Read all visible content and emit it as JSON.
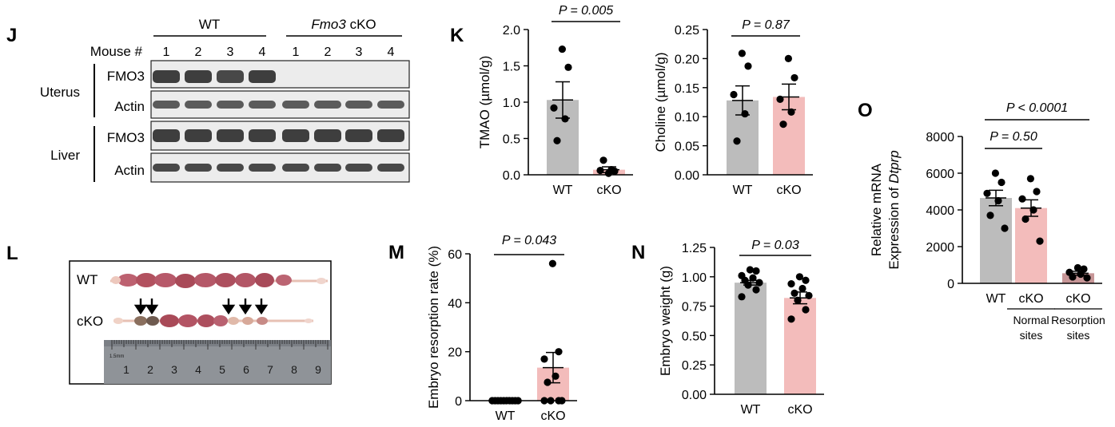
{
  "colors": {
    "wt_bar": "#bcbcbc",
    "cko_bar": "#f3bcbb",
    "cko_resorption_bar": "#c79697",
    "blot_bg": "#ececec",
    "band": "#2b2b2b",
    "ruler": "#8e9196",
    "photo_bg": "#ffffff",
    "tissue": "#b55a69"
  },
  "panel_J": {
    "label": "J",
    "groups": [
      {
        "name": "WT",
        "italic_prefix": ""
      },
      {
        "name": "cKO",
        "italic_prefix": "Fmo3"
      }
    ],
    "mouse_label": "Mouse #",
    "lanes": [
      "1",
      "2",
      "3",
      "4",
      "1",
      "2",
      "3",
      "4"
    ],
    "tissues": [
      {
        "name": "Uterus",
        "rows": [
          {
            "label": "FMO3",
            "bands": [
              0.9,
              0.9,
              0.85,
              0.9,
              0.02,
              0.02,
              0.02,
              0.02
            ]
          },
          {
            "label": "Actin",
            "bands": [
              0.75,
              0.75,
              0.75,
              0.75,
              0.75,
              0.75,
              0.75,
              0.75
            ]
          }
        ]
      },
      {
        "name": "Liver",
        "rows": [
          {
            "label": "FMO3",
            "bands": [
              0.9,
              0.9,
              0.9,
              0.9,
              0.9,
              0.9,
              0.9,
              0.9
            ]
          },
          {
            "label": "Actin",
            "bands": [
              0.85,
              0.85,
              0.85,
              0.85,
              0.85,
              0.85,
              0.85,
              0.85
            ]
          }
        ]
      }
    ]
  },
  "panel_L": {
    "label": "L",
    "row_labels": [
      "WT",
      "cKO"
    ],
    "ruler_numbers": [
      "1",
      "2",
      "3",
      "4",
      "5",
      "6",
      "7",
      "8",
      "9"
    ],
    "ruler_unit": "1.5mm",
    "arrow_count": 5
  },
  "chart_data": [
    {
      "id": "K1",
      "panel_label": "K",
      "type": "bar",
      "title": "",
      "xlabel": "",
      "ylabel": "TMAO (µmol/g)",
      "categories": [
        "WT",
        "cKO"
      ],
      "category_sublabels": [
        "",
        ""
      ],
      "ylim": [
        0,
        2.0
      ],
      "yticks": [
        "0.0",
        "0.5",
        "1.0",
        "1.5",
        "2.0"
      ],
      "means": [
        1.03,
        0.07
      ],
      "sem": [
        0.25,
        0.04
      ],
      "points": [
        [
          1.73,
          1.48,
          0.92,
          0.77,
          0.47
        ],
        [
          0.02,
          0.05,
          0.06,
          0.07,
          0.2
        ]
      ],
      "comparisons": [
        {
          "from": 0,
          "to": 1,
          "text": "P = 0.005"
        }
      ]
    },
    {
      "id": "K2",
      "panel_label": "",
      "type": "bar",
      "title": "",
      "xlabel": "",
      "ylabel": "Choline (µmol/g)",
      "categories": [
        "WT",
        "cKO"
      ],
      "category_sublabels": [
        "",
        ""
      ],
      "ylim": [
        0,
        0.25
      ],
      "yticks": [
        "0.00",
        "0.05",
        "0.10",
        "0.15",
        "0.20",
        "0.25"
      ],
      "means": [
        0.128,
        0.134
      ],
      "sem": [
        0.025,
        0.022
      ],
      "points": [
        [
          0.209,
          0.187,
          0.138,
          0.105,
          0.058
        ],
        [
          0.2,
          0.167,
          0.13,
          0.108,
          0.087
        ]
      ],
      "comparisons": [
        {
          "from": 0,
          "to": 1,
          "text": "P = 0.87"
        }
      ]
    },
    {
      "id": "M",
      "panel_label": "M",
      "type": "bar",
      "title": "",
      "xlabel": "",
      "ylabel": "Embryo resorption rate (%)",
      "categories": [
        "WT",
        "cKO"
      ],
      "category_sublabels": [
        "",
        ""
      ],
      "ylim": [
        0,
        60
      ],
      "yticks": [
        "0",
        "20",
        "40",
        "60"
      ],
      "means": [
        0,
        13.5
      ],
      "sem": [
        0,
        6.2
      ],
      "points": [
        [
          0,
          0,
          0,
          0,
          0,
          0,
          0,
          0,
          0,
          0
        ],
        [
          56,
          20,
          17,
          10,
          7.5,
          0,
          0,
          0,
          0
        ]
      ],
      "comparisons": [
        {
          "from": 0,
          "to": 1,
          "text": "P = 0.043"
        }
      ]
    },
    {
      "id": "N",
      "panel_label": "N",
      "type": "bar",
      "title": "",
      "xlabel": "",
      "ylabel": "Embryo weight (g)",
      "categories": [
        "WT",
        "cKO"
      ],
      "category_sublabels": [
        "",
        ""
      ],
      "ylim": [
        0,
        1.25
      ],
      "yticks": [
        "0.00",
        "0.25",
        "0.50",
        "0.75",
        "1.00",
        "1.25"
      ],
      "means": [
        0.95,
        0.82
      ],
      "sem": [
        0.02,
        0.05
      ],
      "points": [
        [
          1.06,
          1.05,
          1.01,
          0.99,
          0.97,
          0.95,
          0.93,
          0.89,
          0.83
        ],
        [
          1.0,
          0.97,
          0.94,
          0.9,
          0.86,
          0.84,
          0.8,
          0.72,
          0.64
        ]
      ],
      "comparisons": [
        {
          "from": 0,
          "to": 1,
          "text": "P = 0.03"
        }
      ]
    },
    {
      "id": "O",
      "panel_label": "O",
      "type": "bar",
      "title": "",
      "xlabel": "",
      "ylabel": "Relative mRNA",
      "ylabel2_prefix": "Expression of ",
      "ylabel2_italic": "Dtprp",
      "categories": [
        "WT",
        "cKO",
        "cKO"
      ],
      "category_sublabels": [
        "",
        "Normal sites",
        "Resorption sites"
      ],
      "ylim": [
        0,
        8000
      ],
      "yticks": [
        "0",
        "2000",
        "4000",
        "6000",
        "8000"
      ],
      "means": [
        4650,
        4100,
        550
      ],
      "sem": [
        420,
        450,
        110
      ],
      "points": [
        [
          6000,
          5500,
          4900,
          4500,
          3700,
          3000
        ],
        [
          5700,
          5000,
          4600,
          4000,
          3500,
          2300
        ],
        [
          850,
          780,
          600,
          500,
          350,
          300
        ]
      ],
      "comparisons": [
        {
          "from": 0,
          "to": 1,
          "text": "P = 0.50"
        },
        {
          "from": 0,
          "to": 2,
          "text": "P < 0.0001"
        }
      ]
    }
  ]
}
